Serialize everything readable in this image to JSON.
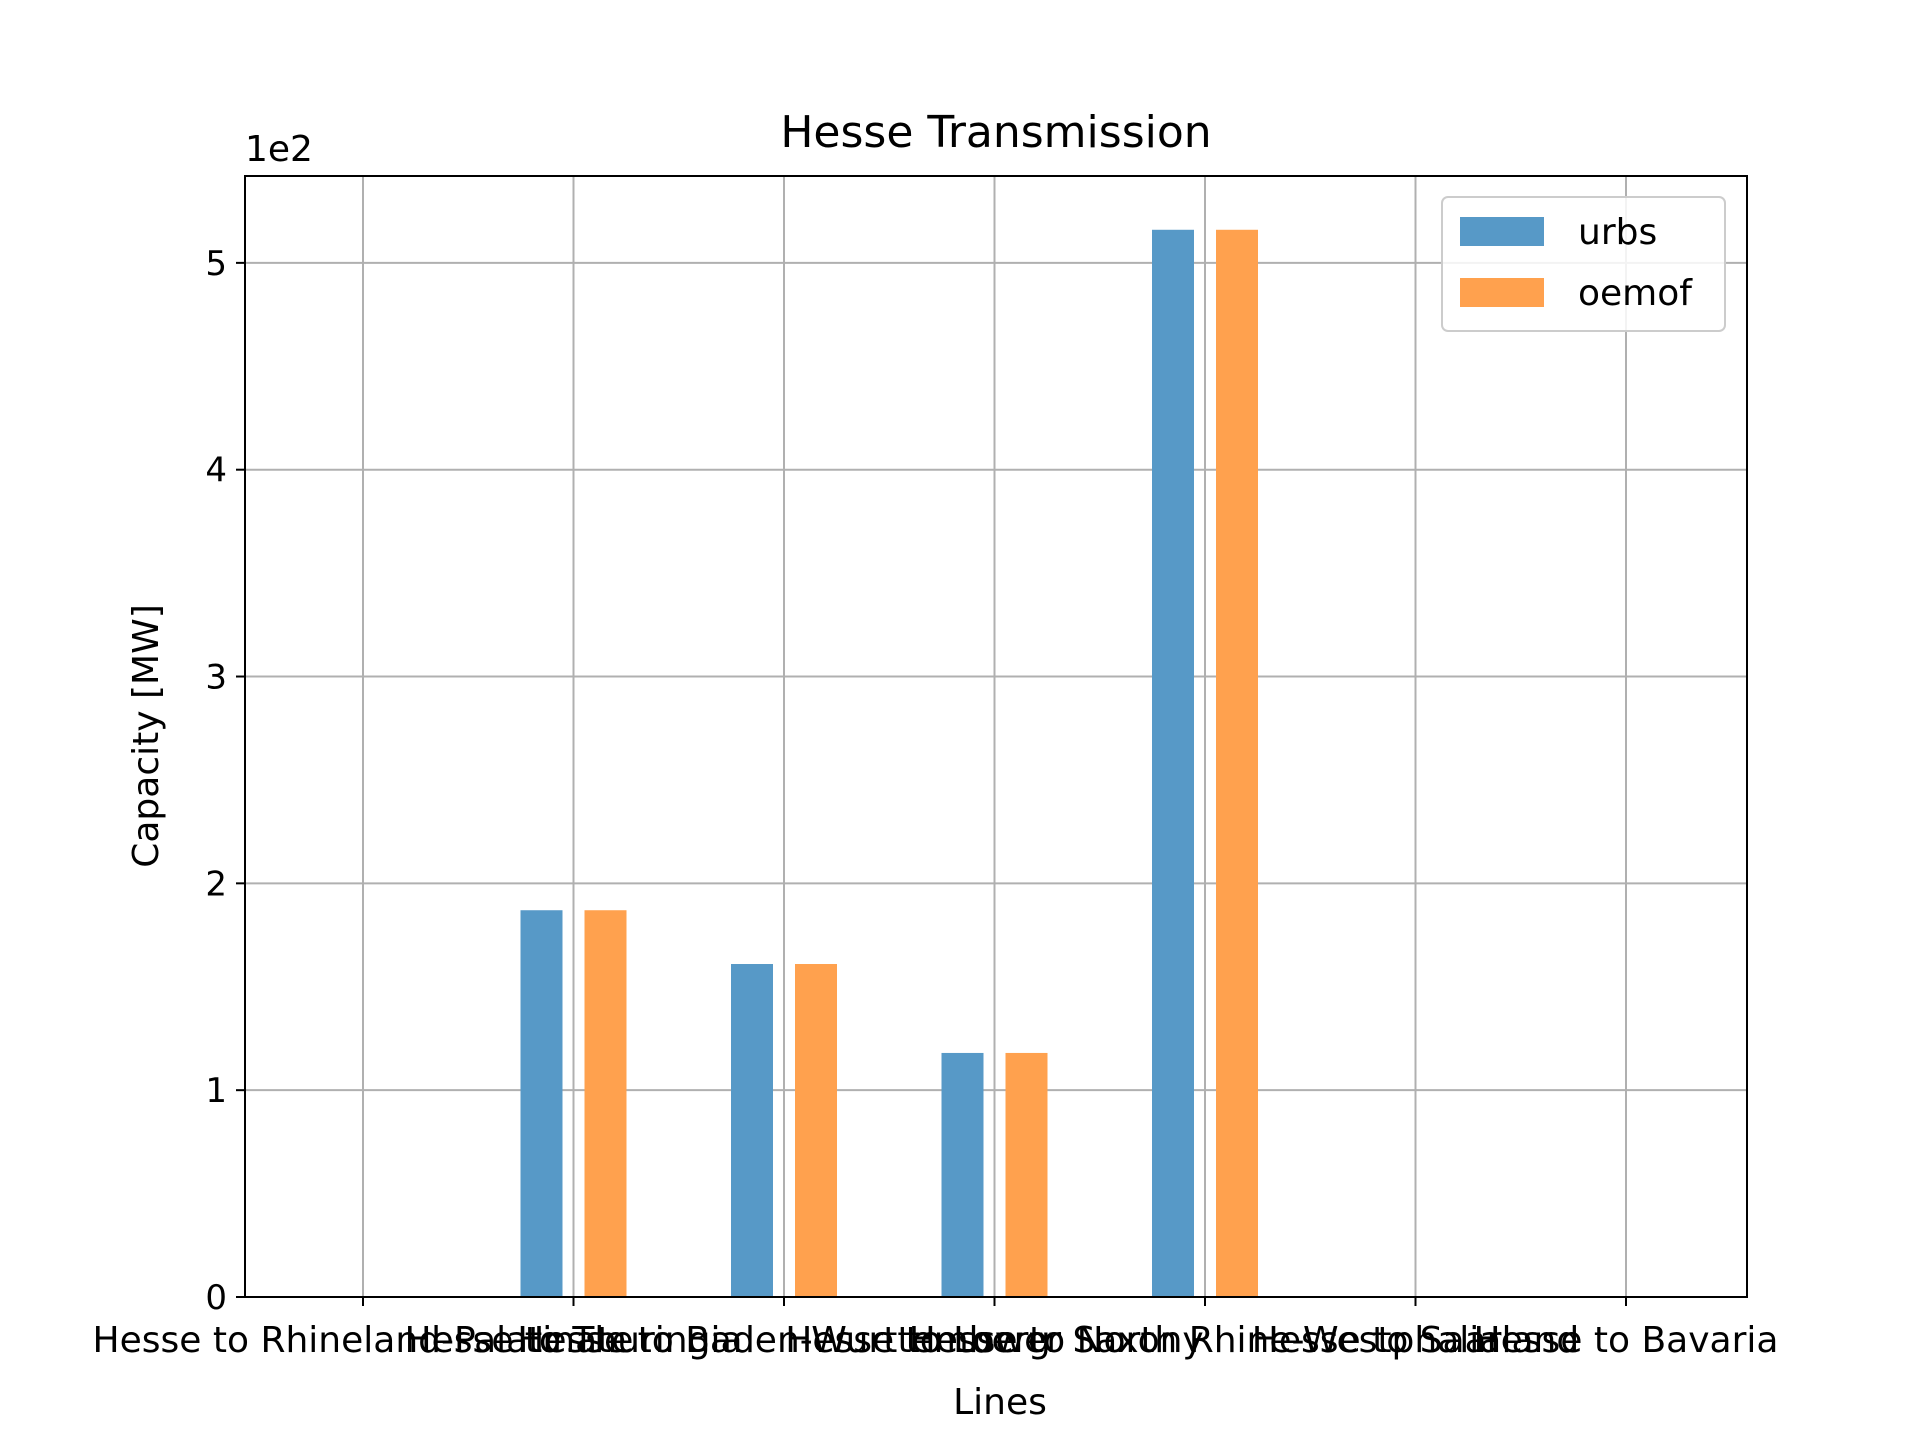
{
  "chart_data": {
    "type": "bar",
    "title": "Hesse Transmission",
    "xlabel": "Lines",
    "ylabel": "Capacity [MW]",
    "y_offset_label": "1e2",
    "categories": [
      "Hesse to Rhineland-Palatinate",
      "Hesse to Thuringia",
      "Hesse to Baden-Wurttemberg",
      "Hesse to Lower Saxony",
      "Hesse to North Rhine-Westphalia",
      "Hesse to Saarland",
      "Hesse to Bavaria"
    ],
    "series": [
      {
        "name": "urbs",
        "color": "#5799c7",
        "values": [
          0,
          187,
          161,
          118,
          516,
          0,
          0
        ]
      },
      {
        "name": "oemof",
        "color": "#ffa14e",
        "values": [
          0,
          187,
          161,
          118,
          516,
          0,
          0
        ]
      }
    ],
    "ylim": [
      0,
      542
    ],
    "yticks": [
      0,
      100,
      200,
      300,
      400,
      500
    ],
    "ytick_labels": [
      "0",
      "1",
      "2",
      "3",
      "4",
      "5"
    ],
    "grid": true,
    "legend_position": "upper right"
  }
}
